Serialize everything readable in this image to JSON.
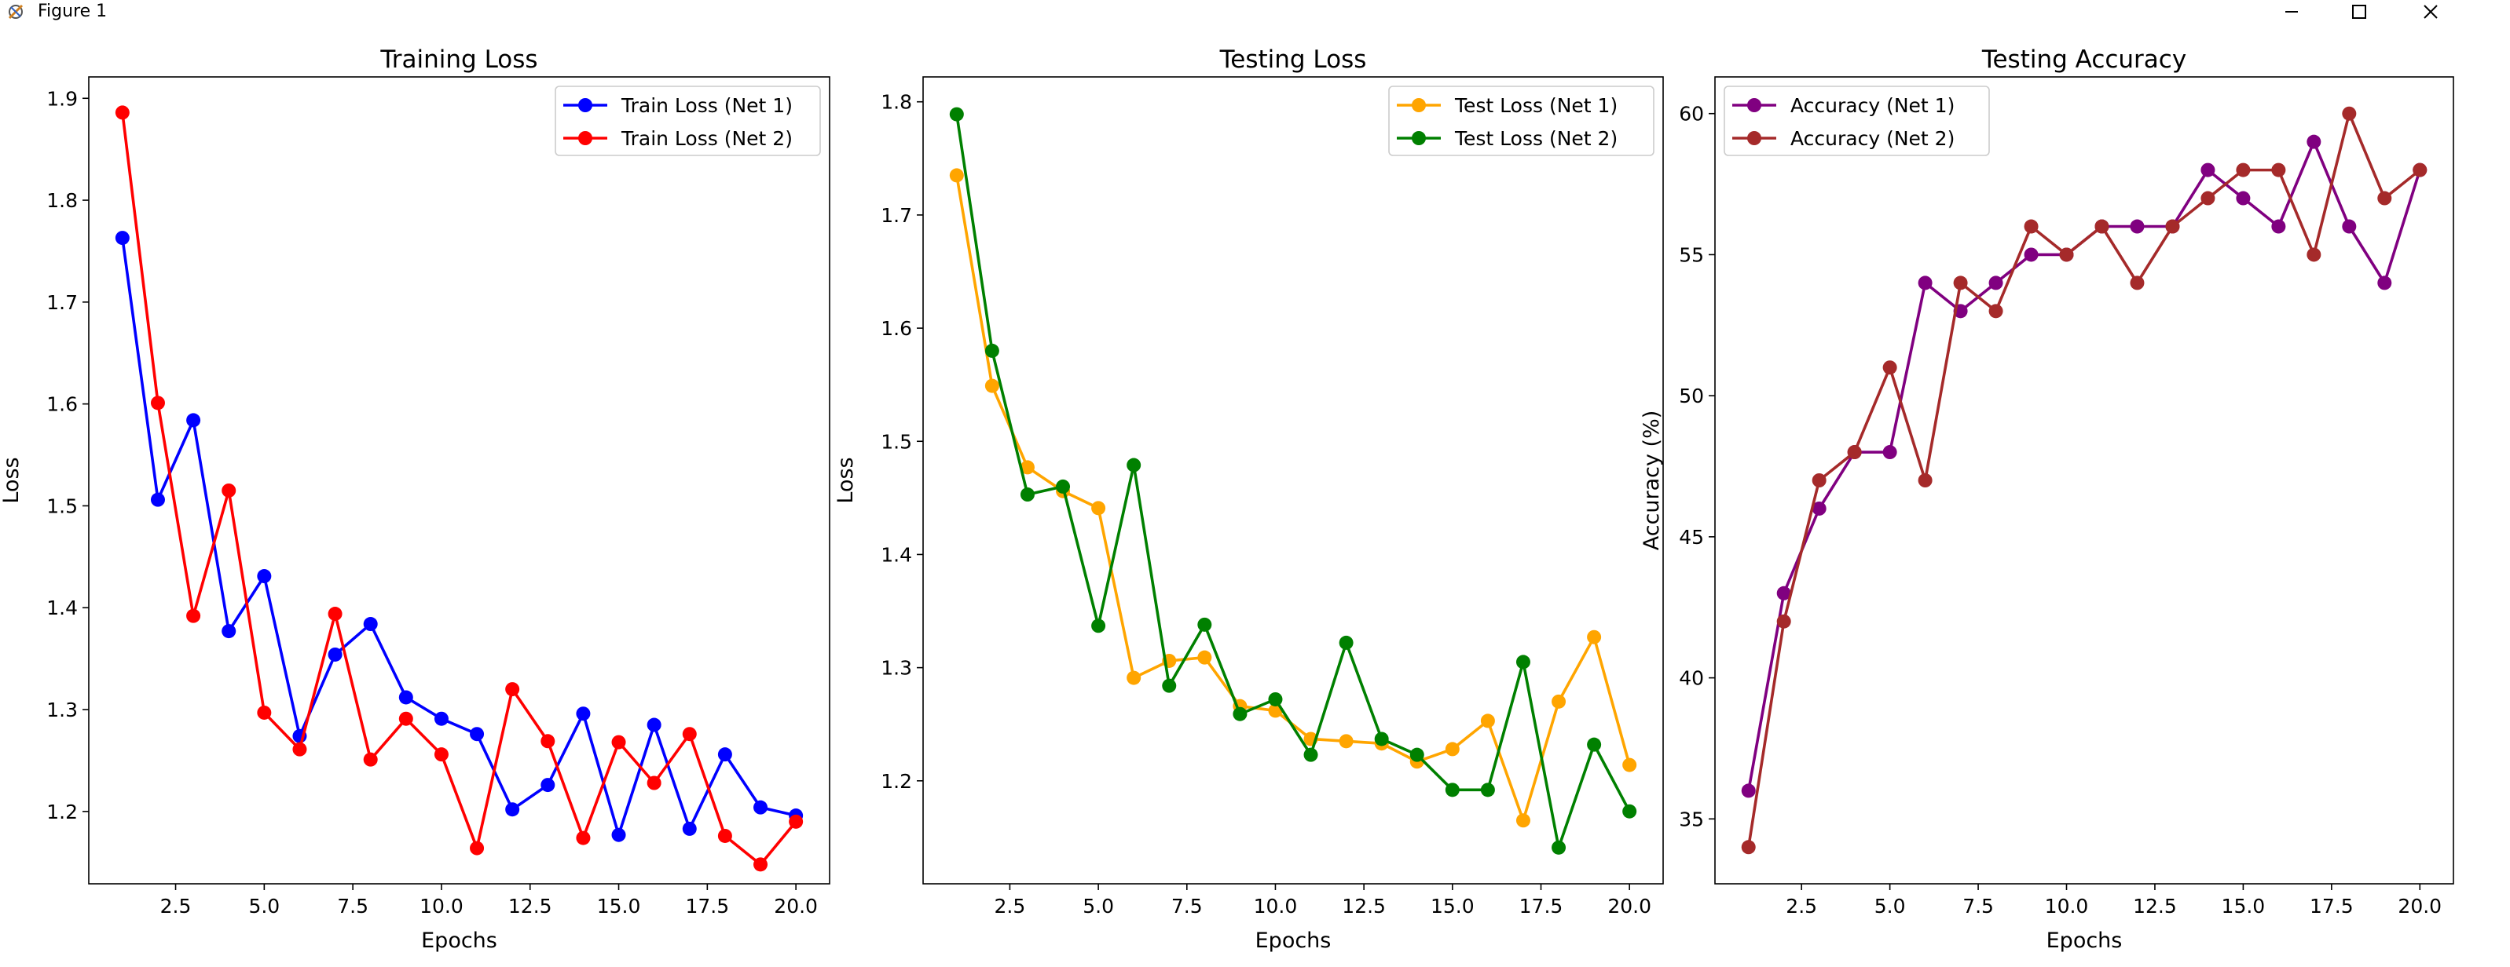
{
  "window": {
    "title": "Figure 1",
    "icons": {
      "app": "matplotlib-figure-icon",
      "minimize": "minimize-icon",
      "maximize": "maximize-icon",
      "close": "close-icon"
    }
  },
  "chart_data": [
    {
      "type": "line",
      "title": "Training Loss",
      "xlabel": "Epochs",
      "ylabel": "Loss",
      "x": [
        1,
        2,
        3,
        4,
        5,
        6,
        7,
        8,
        9,
        10,
        11,
        12,
        13,
        14,
        15,
        16,
        17,
        18,
        19,
        20
      ],
      "xlim": [
        0.05,
        20.95
      ],
      "ylim": [
        1.129,
        1.921
      ],
      "xticks": [
        2.5,
        5.0,
        7.5,
        10.0,
        12.5,
        15.0,
        17.5,
        20.0
      ],
      "xtick_labels": [
        "2.5",
        "5.0",
        "7.5",
        "10.0",
        "12.5",
        "15.0",
        "17.5",
        "20.0"
      ],
      "yticks": [
        1.2,
        1.3,
        1.4,
        1.5,
        1.6,
        1.7,
        1.8,
        1.9
      ],
      "ytick_labels": [
        "1.2",
        "1.3",
        "1.4",
        "1.5",
        "1.6",
        "1.7",
        "1.8",
        "1.9"
      ],
      "grid": false,
      "legend_position": "upper right",
      "series": [
        {
          "name": "Train Loss (Net 1)",
          "color": "#0000ff",
          "values": [
            1.763,
            1.506,
            1.584,
            1.377,
            1.431,
            1.274,
            1.354,
            1.384,
            1.312,
            1.291,
            1.276,
            1.202,
            1.226,
            1.296,
            1.177,
            1.285,
            1.183,
            1.256,
            1.204,
            1.196
          ]
        },
        {
          "name": "Train Loss (Net 2)",
          "color": "#ff0000",
          "values": [
            1.886,
            1.601,
            1.392,
            1.515,
            1.297,
            1.261,
            1.394,
            1.251,
            1.291,
            1.256,
            1.164,
            1.32,
            1.269,
            1.174,
            1.268,
            1.228,
            1.276,
            1.176,
            1.148,
            1.19
          ]
        }
      ]
    },
    {
      "type": "line",
      "title": "Testing Loss",
      "xlabel": "Epochs",
      "ylabel": "Loss",
      "x": [
        1,
        2,
        3,
        4,
        5,
        6,
        7,
        8,
        9,
        10,
        11,
        12,
        13,
        14,
        15,
        16,
        17,
        18,
        19,
        20
      ],
      "xlim": [
        0.05,
        20.95
      ],
      "ylim": [
        1.109,
        1.822
      ],
      "xticks": [
        2.5,
        5.0,
        7.5,
        10.0,
        12.5,
        15.0,
        17.5,
        20.0
      ],
      "xtick_labels": [
        "2.5",
        "5.0",
        "7.5",
        "10.0",
        "12.5",
        "15.0",
        "17.5",
        "20.0"
      ],
      "yticks": [
        1.2,
        1.3,
        1.4,
        1.5,
        1.6,
        1.7,
        1.8
      ],
      "ytick_labels": [
        "1.2",
        "1.3",
        "1.4",
        "1.5",
        "1.6",
        "1.7",
        "1.8"
      ],
      "grid": false,
      "legend_position": "upper right",
      "series": [
        {
          "name": "Test Loss (Net 1)",
          "color": "#ffa500",
          "values": [
            1.735,
            1.549,
            1.477,
            1.456,
            1.441,
            1.291,
            1.306,
            1.309,
            1.266,
            1.262,
            1.237,
            1.235,
            1.233,
            1.217,
            1.228,
            1.253,
            1.165,
            1.27,
            1.327,
            1.214
          ]
        },
        {
          "name": "Test Loss (Net 2)",
          "color": "#008000",
          "values": [
            1.789,
            1.58,
            1.453,
            1.46,
            1.337,
            1.479,
            1.284,
            1.338,
            1.259,
            1.272,
            1.223,
            1.322,
            1.237,
            1.223,
            1.192,
            1.192,
            1.305,
            1.141,
            1.232,
            1.173
          ]
        }
      ]
    },
    {
      "type": "line",
      "title": "Testing Accuracy",
      "xlabel": "Epochs",
      "ylabel": "Accuracy (%)",
      "x": [
        1,
        2,
        3,
        4,
        5,
        6,
        7,
        8,
        9,
        10,
        11,
        12,
        13,
        14,
        15,
        16,
        17,
        18,
        19,
        20
      ],
      "xlim": [
        0.05,
        20.95
      ],
      "ylim": [
        32.7,
        61.3
      ],
      "xticks": [
        2.5,
        5.0,
        7.5,
        10.0,
        12.5,
        15.0,
        17.5,
        20.0
      ],
      "xtick_labels": [
        "2.5",
        "5.0",
        "7.5",
        "10.0",
        "12.5",
        "15.0",
        "17.5",
        "20.0"
      ],
      "yticks": [
        35,
        40,
        45,
        50,
        55,
        60
      ],
      "ytick_labels": [
        "35",
        "40",
        "45",
        "50",
        "55",
        "60"
      ],
      "grid": false,
      "legend_position": "upper left",
      "series": [
        {
          "name": "Accuracy (Net 1)",
          "color": "#800080",
          "values": [
            36,
            43,
            46,
            48,
            48,
            54,
            53,
            54,
            55,
            55,
            56,
            56,
            56,
            58,
            57,
            56,
            59,
            56,
            54,
            58
          ]
        },
        {
          "name": "Accuracy (Net 2)",
          "color": "#a52a2a",
          "values": [
            34,
            42,
            47,
            48,
            51,
            47,
            54,
            53,
            56,
            55,
            56,
            54,
            56,
            57,
            58,
            58,
            55,
            60,
            57,
            58
          ]
        }
      ]
    }
  ]
}
